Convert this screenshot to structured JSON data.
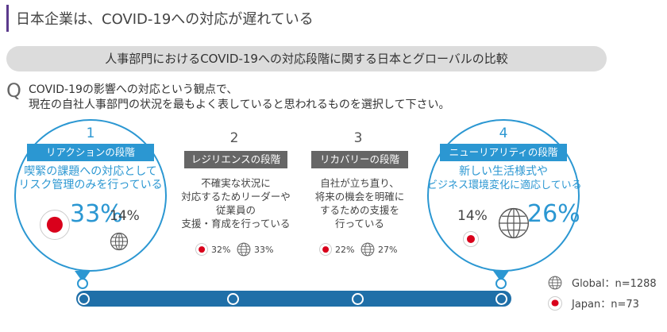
{
  "title": "日本企業は、COVID-19への対応が遅れている",
  "subtitle": "人事部門におけるCOVID-19への対応段階に関する日本とグローバルの比較",
  "question": {
    "mark": "Q",
    "line1": "COVID-19の影響への対応という観点で、",
    "line2": "現在の自社人事部門の状況を最もよく表していると思われるものを選択して下さい。"
  },
  "chart_data": {
    "type": "table",
    "series": [
      {
        "name": "Japan",
        "values": [
          33,
          32,
          22,
          14
        ]
      },
      {
        "name": "Global",
        "values": [
          14,
          33,
          27,
          26
        ]
      }
    ],
    "stages": [
      {
        "number": "1",
        "label": "リアクションの段階",
        "desc": [
          "喫緊の課題への対応として",
          "リスク管理のみを行っている"
        ],
        "japan": "33%",
        "global": "14%"
      },
      {
        "number": "2",
        "label": "レジリエンスの段階",
        "desc": [
          "不確実な状況に",
          "対応するためリーダーや",
          "従業員の",
          "支援・育成を行っている"
        ],
        "japan": "32%",
        "global": "33%"
      },
      {
        "number": "3",
        "label": "リカバリーの段階",
        "desc": [
          "自社が立ち直り、",
          "将来の機会を明確に",
          "するための支援を",
          "行っている"
        ],
        "japan": "22%",
        "global": "27%"
      },
      {
        "number": "4",
        "label": "ニューリアリティの段階",
        "desc": [
          "新しい生活様式や",
          "ビジネス環境変化に適応している"
        ],
        "japan": "14%",
        "global": "26%"
      }
    ]
  },
  "legend": {
    "global": "Global：n=1288",
    "japan": "Japan：n=73"
  },
  "colors": {
    "accent": "#2b97d2",
    "timeline": "#1f6fa8",
    "japan_red": "#d9001b",
    "title_bar": "#5b3a8c"
  },
  "icons": {
    "japan": "japan-flag-icon",
    "global": "globe-icon"
  }
}
